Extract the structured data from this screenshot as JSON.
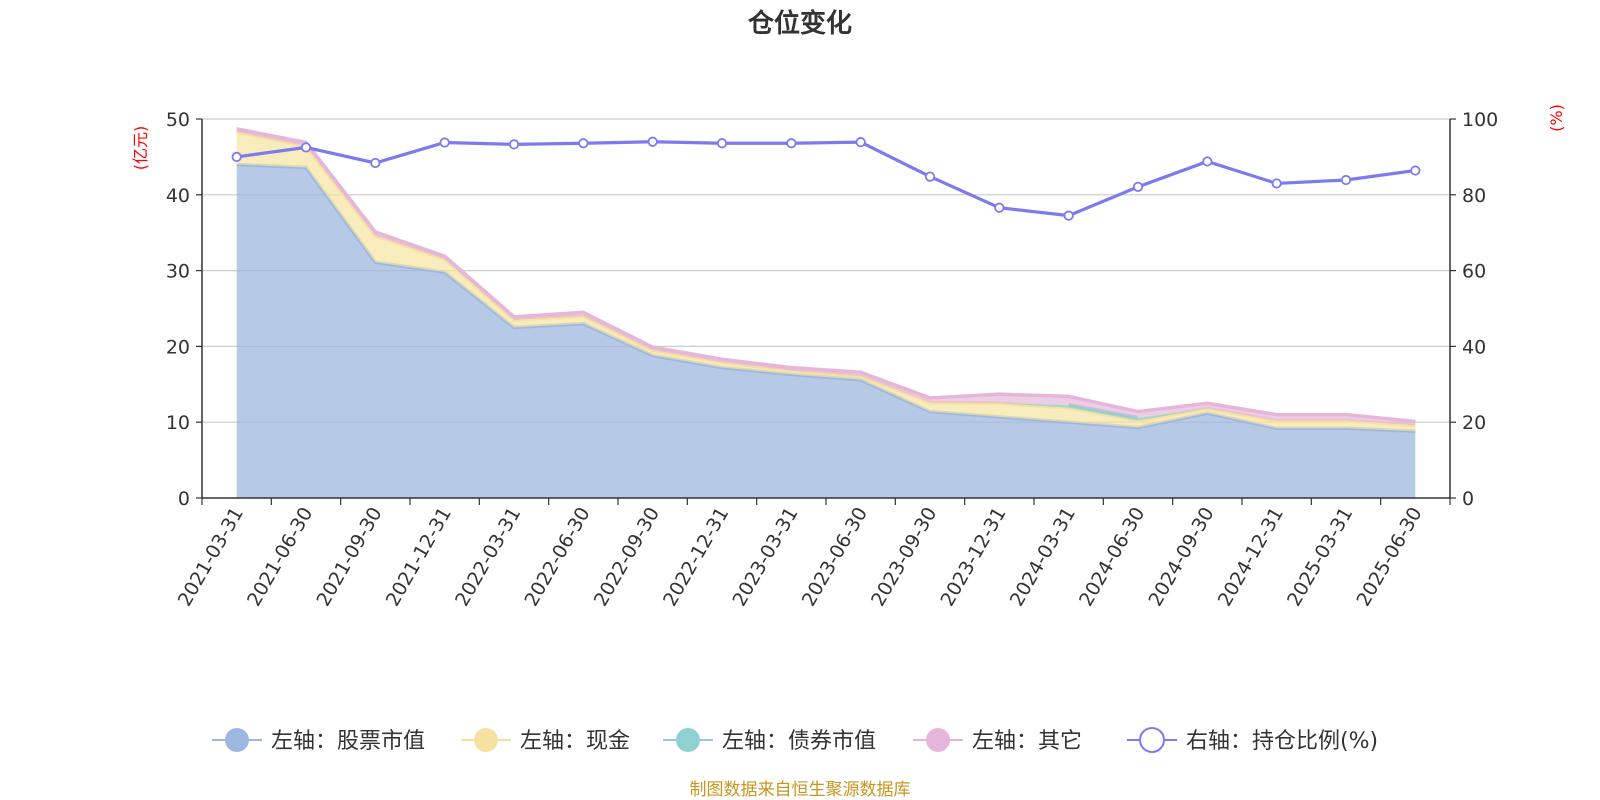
{
  "chart_data": {
    "type": "area",
    "title": "仓位变化",
    "source": "制图数据来自恒生聚源数据库",
    "left_axis": {
      "label": "(亿元)",
      "ticks": [
        "0",
        "10",
        "20",
        "30",
        "40",
        "50"
      ],
      "range": [
        0,
        50
      ]
    },
    "right_axis": {
      "label": "(%)",
      "ticks": [
        "0",
        "20",
        "40",
        "60",
        "80",
        "100"
      ],
      "range": [
        0,
        100
      ]
    },
    "categories": [
      "2021-03-31",
      "2021-06-30",
      "2021-09-30",
      "2021-12-31",
      "2022-03-31",
      "2022-06-30",
      "2022-09-30",
      "2022-12-31",
      "2023-03-31",
      "2023-06-30",
      "2023-09-30",
      "2023-12-31",
      "2024-03-31",
      "2024-06-30",
      "2024-09-30",
      "2024-12-31",
      "2025-03-31",
      "2025-06-30"
    ],
    "series": [
      {
        "name": "左轴：股票市值",
        "axis": "left",
        "stack": true,
        "color": "#9db8e0",
        "values": [
          44.0,
          43.6,
          31.1,
          29.8,
          22.5,
          23.0,
          18.8,
          17.2,
          16.3,
          15.6,
          11.4,
          10.7,
          10.0,
          9.3,
          11.2,
          9.2,
          9.2,
          8.8
        ]
      },
      {
        "name": "左轴：现金",
        "axis": "left",
        "stack": true,
        "color": "#f5e2a0",
        "values": [
          4.3,
          2.8,
          3.5,
          1.7,
          1.0,
          1.0,
          0.7,
          0.7,
          0.5,
          0.5,
          1.2,
          1.8,
          1.9,
          0.9,
          0.6,
          1.0,
          1.0,
          0.8
        ]
      },
      {
        "name": "左轴：债券市值",
        "axis": "left",
        "stack": true,
        "color": "#8fd0d0",
        "values": [
          0,
          0,
          0,
          0,
          0,
          0,
          0,
          0,
          0,
          0,
          0,
          0,
          0.4,
          0.4,
          0,
          0,
          0,
          0
        ]
      },
      {
        "name": "左轴：其它",
        "axis": "left",
        "stack": true,
        "color": "#e6b6da",
        "values": [
          0.4,
          0.5,
          0.5,
          0.4,
          0.4,
          0.5,
          0.4,
          0.4,
          0.4,
          0.5,
          0.6,
          1.2,
          1.1,
          0.8,
          0.7,
          0.8,
          0.8,
          0.5
        ]
      },
      {
        "name": "右轴：持仓比例(%)",
        "axis": "right",
        "stack": false,
        "color": "#7b7bef",
        "values": [
          90.0,
          92.5,
          88.4,
          93.8,
          93.3,
          93.6,
          94.0,
          93.6,
          93.6,
          93.9,
          84.8,
          76.6,
          74.5,
          82.1,
          88.8,
          83.0,
          83.9,
          86.4
        ]
      }
    ]
  }
}
